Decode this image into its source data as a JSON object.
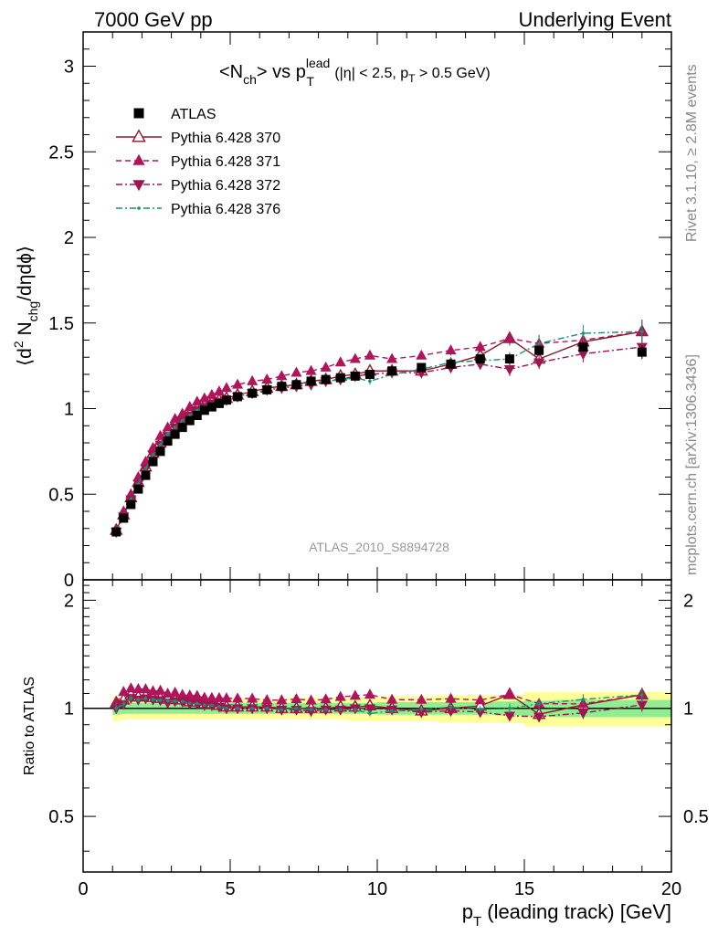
{
  "header": {
    "left": "7000 GeV pp",
    "right": "Underlying Event"
  },
  "side_labels": {
    "rivet": "Rivet 3.1.10, ≥ 2.8M events",
    "mcplots": "mcplots.cern.ch [arXiv:1306.3436]"
  },
  "analysis_id": "ATLAS_2010_S8894728",
  "chart_data": [
    {
      "type": "scatter",
      "panel": "main",
      "title": {
        "t1": "<N",
        "t1_sub": "ch",
        "t2": "> vs p",
        "t2_sup": "lead",
        "t2_sub": "T",
        "cut1": " (|η| < 2.5, p",
        "cut_sub": "T",
        "cut2": " > 0.5 GeV)"
      },
      "ylabel": {
        "a": "⟨d",
        "sup": "2",
        "b": " N",
        "sub": "chg",
        "c": "/dηdϕ⟩"
      },
      "xlim": [
        0,
        20
      ],
      "ylim": [
        0,
        3.2
      ],
      "ytick_values": [
        0,
        0.5,
        1,
        1.5,
        2,
        2.5,
        3
      ],
      "ytick_labels": [
        "0",
        "0.5",
        "1",
        "1.5",
        "2",
        "2.5",
        "3"
      ],
      "x": [
        1.125,
        1.375,
        1.625,
        1.875,
        2.125,
        2.375,
        2.625,
        2.875,
        3.125,
        3.375,
        3.625,
        3.875,
        4.125,
        4.375,
        4.625,
        4.875,
        5.25,
        5.75,
        6.25,
        6.75,
        7.25,
        7.75,
        8.25,
        8.75,
        9.25,
        9.75,
        10.5,
        11.5,
        12.5,
        13.5,
        14.5,
        15.5,
        17.0,
        19.0
      ],
      "legend": {
        "position": "top-left"
      },
      "series": [
        {
          "name": "ATLAS",
          "marker": "square",
          "color": "#000000",
          "values": [
            0.28,
            0.36,
            0.44,
            0.53,
            0.61,
            0.69,
            0.75,
            0.81,
            0.85,
            0.89,
            0.93,
            0.96,
            0.99,
            1.01,
            1.03,
            1.05,
            1.07,
            1.09,
            1.11,
            1.13,
            1.14,
            1.16,
            1.17,
            1.18,
            1.19,
            1.2,
            1.22,
            1.24,
            1.26,
            1.29,
            1.29,
            1.34,
            1.36,
            1.33
          ],
          "errors": [
            0.01,
            0.01,
            0.01,
            0.01,
            0.01,
            0.01,
            0.01,
            0.01,
            0.01,
            0.01,
            0.01,
            0.01,
            0.01,
            0.01,
            0.01,
            0.01,
            0.01,
            0.01,
            0.01,
            0.01,
            0.01,
            0.01,
            0.01,
            0.01,
            0.01,
            0.02,
            0.02,
            0.02,
            0.02,
            0.03,
            0.03,
            0.03,
            0.03,
            0.04
          ]
        },
        {
          "name": "Pythia 6.428 370",
          "marker": "triangle-open",
          "line": "solid",
          "color": "#8b1a2b",
          "values": [
            0.29,
            0.38,
            0.48,
            0.57,
            0.66,
            0.74,
            0.8,
            0.86,
            0.9,
            0.94,
            0.97,
            1.0,
            1.02,
            1.04,
            1.05,
            1.06,
            1.08,
            1.1,
            1.12,
            1.13,
            1.14,
            1.16,
            1.17,
            1.19,
            1.2,
            1.22,
            1.22,
            1.22,
            1.26,
            1.31,
            1.41,
            1.29,
            1.39,
            1.45
          ],
          "errors": [
            0.01,
            0.01,
            0.01,
            0.01,
            0.01,
            0.01,
            0.01,
            0.01,
            0.01,
            0.01,
            0.01,
            0.01,
            0.01,
            0.01,
            0.01,
            0.01,
            0.01,
            0.01,
            0.01,
            0.01,
            0.01,
            0.01,
            0.01,
            0.01,
            0.01,
            0.02,
            0.02,
            0.02,
            0.02,
            0.03,
            0.04,
            0.04,
            0.05,
            0.06
          ]
        },
        {
          "name": "Pythia 6.428 371",
          "marker": "triangle-filled",
          "line": "dashed",
          "color": "#b0145a",
          "values": [
            0.29,
            0.4,
            0.5,
            0.6,
            0.69,
            0.77,
            0.84,
            0.89,
            0.94,
            0.97,
            1.01,
            1.04,
            1.06,
            1.08,
            1.1,
            1.12,
            1.14,
            1.16,
            1.17,
            1.19,
            1.21,
            1.22,
            1.24,
            1.27,
            1.29,
            1.31,
            1.29,
            1.31,
            1.34,
            1.36,
            1.41,
            1.38,
            1.4,
            1.45
          ],
          "errors": [
            0.01,
            0.01,
            0.01,
            0.01,
            0.01,
            0.01,
            0.01,
            0.01,
            0.01,
            0.01,
            0.01,
            0.01,
            0.01,
            0.01,
            0.01,
            0.01,
            0.01,
            0.01,
            0.01,
            0.01,
            0.01,
            0.01,
            0.01,
            0.01,
            0.02,
            0.02,
            0.02,
            0.02,
            0.03,
            0.03,
            0.04,
            0.05,
            0.05,
            0.07
          ]
        },
        {
          "name": "Pythia 6.428 372",
          "marker": "triangle-down-filled",
          "line": "dashdot",
          "color": "#a01450",
          "values": [
            0.28,
            0.37,
            0.47,
            0.56,
            0.65,
            0.73,
            0.79,
            0.84,
            0.89,
            0.93,
            0.96,
            0.99,
            1.01,
            1.03,
            1.04,
            1.05,
            1.07,
            1.09,
            1.11,
            1.12,
            1.13,
            1.14,
            1.16,
            1.17,
            1.19,
            1.2,
            1.21,
            1.21,
            1.24,
            1.26,
            1.23,
            1.27,
            1.32,
            1.36
          ],
          "errors": [
            0.01,
            0.01,
            0.01,
            0.01,
            0.01,
            0.01,
            0.01,
            0.01,
            0.01,
            0.01,
            0.01,
            0.01,
            0.01,
            0.01,
            0.01,
            0.01,
            0.01,
            0.01,
            0.01,
            0.01,
            0.01,
            0.01,
            0.01,
            0.01,
            0.02,
            0.02,
            0.02,
            0.02,
            0.03,
            0.03,
            0.04,
            0.04,
            0.05,
            0.06
          ]
        },
        {
          "name": "Pythia 6.428 376",
          "marker": "dot",
          "line": "dashdot",
          "color": "#1a9070",
          "values": [
            0.28,
            0.37,
            0.47,
            0.56,
            0.65,
            0.73,
            0.79,
            0.85,
            0.89,
            0.93,
            0.96,
            0.99,
            1.01,
            1.03,
            1.04,
            1.05,
            1.07,
            1.09,
            1.11,
            1.12,
            1.14,
            1.15,
            1.16,
            1.17,
            1.18,
            1.16,
            1.2,
            1.23,
            1.27,
            1.28,
            1.29,
            1.38,
            1.44,
            1.45
          ],
          "errors": [
            0.01,
            0.01,
            0.01,
            0.01,
            0.01,
            0.01,
            0.01,
            0.01,
            0.01,
            0.01,
            0.01,
            0.01,
            0.01,
            0.01,
            0.01,
            0.01,
            0.01,
            0.01,
            0.01,
            0.01,
            0.01,
            0.01,
            0.01,
            0.01,
            0.02,
            0.02,
            0.02,
            0.02,
            0.03,
            0.03,
            0.04,
            0.05,
            0.05,
            0.07
          ]
        }
      ]
    },
    {
      "type": "scatter",
      "panel": "ratio",
      "ylabel": "Ratio to ATLAS",
      "xlabel": {
        "a": "p",
        "sub": "T",
        "b": " (leading track) [GeV]"
      },
      "xlim": [
        0,
        20
      ],
      "ylim": [
        0.35,
        2.28
      ],
      "log_y": true,
      "xtick_values": [
        0,
        5,
        10,
        15,
        20
      ],
      "xtick_labels": [
        "0",
        "5",
        "10",
        "15",
        "20"
      ],
      "ytick_values": [
        0.5,
        1,
        2
      ],
      "ytick_labels": [
        "0.5",
        "1",
        "2"
      ],
      "reference_line": 1,
      "bands": {
        "edges": [
          1.0,
          1.25,
          1.5,
          1.75,
          2.0,
          2.25,
          2.5,
          2.75,
          3.0,
          3.25,
          3.5,
          3.75,
          4.0,
          4.25,
          4.5,
          4.75,
          5.0,
          5.5,
          6.0,
          6.5,
          7.0,
          7.5,
          8.0,
          8.5,
          9.0,
          9.5,
          10.0,
          11.0,
          12.0,
          13.0,
          14.0,
          15.0,
          16.0,
          18.0,
          20.0
        ],
        "inner": {
          "color": "#90ee90",
          "half_width": [
            0.04,
            0.035,
            0.035,
            0.035,
            0.035,
            0.035,
            0.035,
            0.035,
            0.035,
            0.035,
            0.035,
            0.035,
            0.035,
            0.035,
            0.035,
            0.035,
            0.035,
            0.035,
            0.035,
            0.035,
            0.035,
            0.035,
            0.035,
            0.035,
            0.035,
            0.035,
            0.04,
            0.04,
            0.04,
            0.04,
            0.045,
            0.05,
            0.055,
            0.055
          ]
        },
        "outer": {
          "color": "#ffff99",
          "half_width": [
            0.08,
            0.07,
            0.065,
            0.065,
            0.065,
            0.065,
            0.065,
            0.065,
            0.065,
            0.065,
            0.065,
            0.065,
            0.065,
            0.065,
            0.065,
            0.065,
            0.065,
            0.065,
            0.065,
            0.065,
            0.07,
            0.07,
            0.07,
            0.07,
            0.075,
            0.075,
            0.08,
            0.08,
            0.085,
            0.09,
            0.09,
            0.11,
            0.11,
            0.11
          ]
        }
      }
    }
  ]
}
